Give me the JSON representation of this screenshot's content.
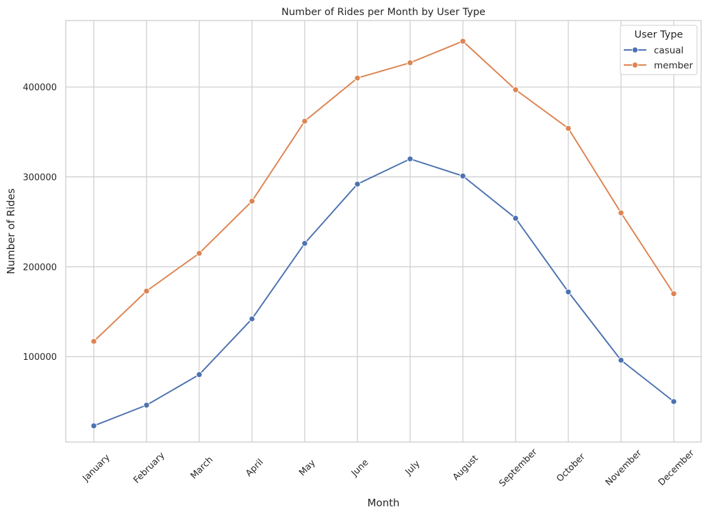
{
  "chart_data": {
    "type": "line",
    "title": "Number of Rides per Month by User Type",
    "xlabel": "Month",
    "ylabel": "Number of Rides",
    "categories": [
      "January",
      "February",
      "March",
      "April",
      "May",
      "June",
      "July",
      "August",
      "September",
      "October",
      "November",
      "December"
    ],
    "series": [
      {
        "name": "casual",
        "color": "#4c72b0",
        "values": [
          23000,
          46000,
          80000,
          142000,
          226000,
          292000,
          320000,
          301000,
          254000,
          172000,
          96000,
          50000
        ]
      },
      {
        "name": "member",
        "color": "#dd8452",
        "values": [
          117000,
          173000,
          215000,
          273000,
          362000,
          410000,
          427000,
          451000,
          397000,
          354000,
          260000,
          170000
        ]
      }
    ],
    "ylim": [
      5000,
      474000
    ],
    "yticks": [
      100000,
      200000,
      300000,
      400000
    ],
    "ytick_labels": [
      "100000",
      "200000",
      "300000",
      "400000"
    ],
    "grid": true,
    "legend": {
      "title": "User Type",
      "placement": "top-right"
    }
  }
}
